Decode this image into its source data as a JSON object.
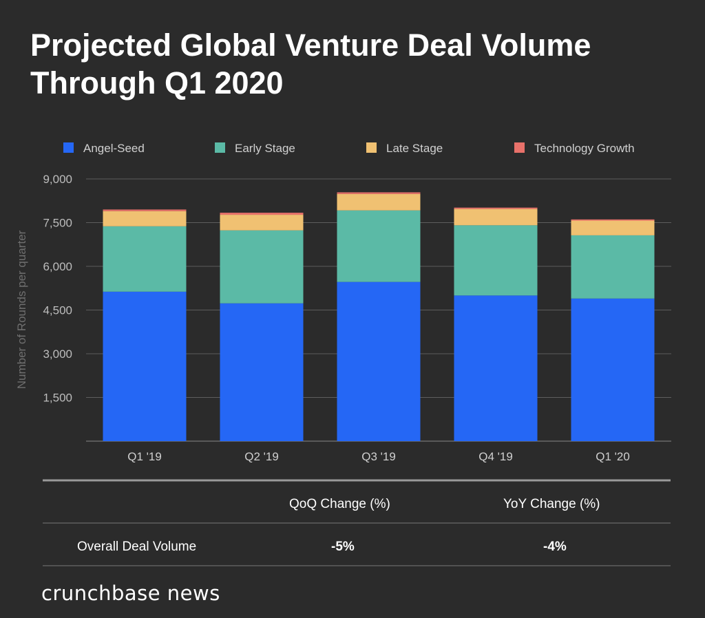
{
  "chart_data": {
    "type": "bar",
    "stacked": true,
    "title": "Projected Global Venture Deal Volume Through Q1 2020",
    "xlabel": "",
    "ylabel": "Number of Rounds per quarter",
    "ylim": [
      0,
      9000
    ],
    "yticks": [
      "1,500",
      "3,000",
      "4,500",
      "6,000",
      "7,500",
      "9,000"
    ],
    "ytick_values": [
      1500,
      3000,
      4500,
      6000,
      7500,
      9000
    ],
    "grid": true,
    "legend_position": "top",
    "categories": [
      "Q1 '19",
      "Q2 '19",
      "Q3 '19",
      "Q4 '19",
      "Q1 '20"
    ],
    "series": [
      {
        "name": "Angel-Seed",
        "color": "#2567f5",
        "values": [
          5130,
          4730,
          5465,
          5000,
          4895
        ]
      },
      {
        "name": "Early Stage",
        "color": "#5bbaa6",
        "values": [
          2245,
          2505,
          2455,
          2410,
          2170
        ]
      },
      {
        "name": "Late Stage",
        "color": "#f0c172",
        "values": [
          520,
          535,
          565,
          560,
          505
        ]
      },
      {
        "name": "Technology Growth",
        "color": "#e8716a",
        "values": [
          55,
          70,
          55,
          45,
          40
        ]
      }
    ]
  },
  "table": {
    "headers": [
      "QoQ Change (%)",
      "YoY Change (%)"
    ],
    "row_label": "Overall Deal Volume",
    "values": [
      "-5%",
      "-4%"
    ]
  },
  "footer": {
    "logo": "crunchbase news"
  }
}
